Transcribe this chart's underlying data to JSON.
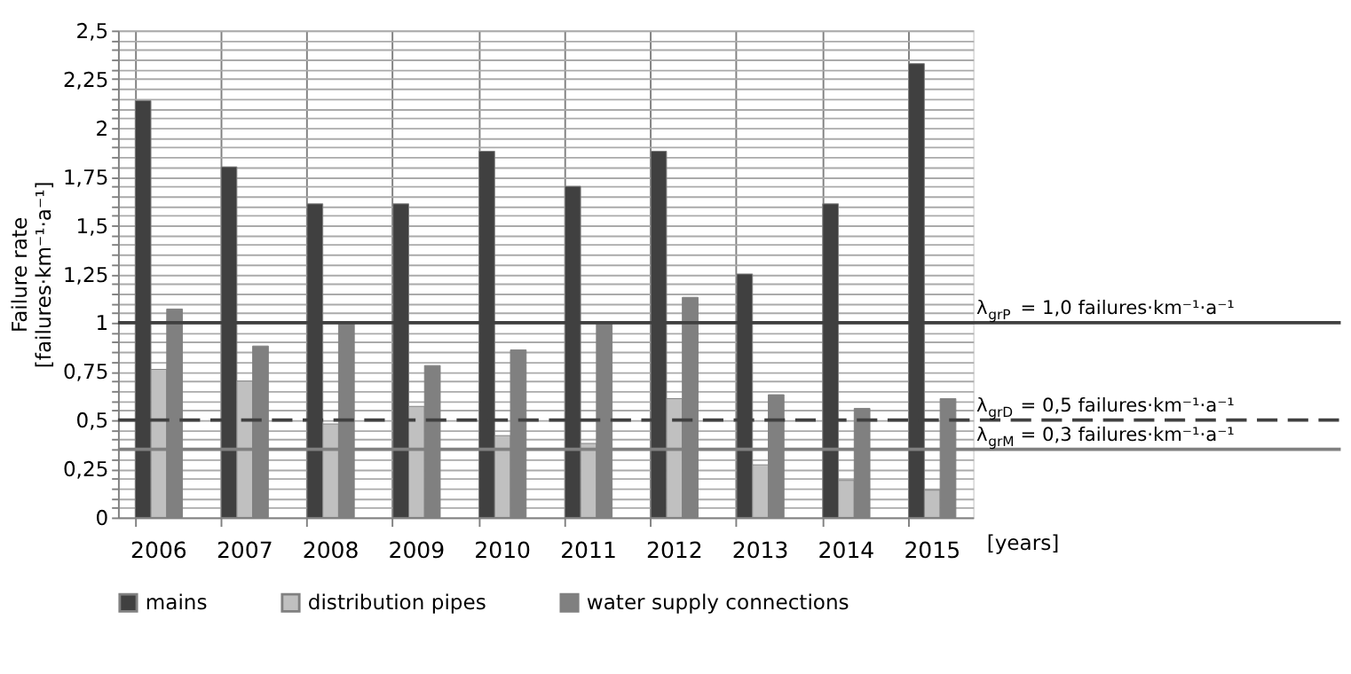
{
  "chart_data": {
    "type": "bar",
    "categories": [
      "2006",
      "2007",
      "2008",
      "2009",
      "2010",
      "2011",
      "2012",
      "2013",
      "2014",
      "2015"
    ],
    "xlabel": "[years]",
    "ylabel": "Failure rate\n[failures·km⁻¹·a⁻¹]",
    "series": [
      {
        "name": "mains",
        "color": "#404040",
        "values": [
          2.14,
          1.8,
          1.61,
          1.61,
          1.88,
          1.7,
          1.88,
          1.25,
          1.61,
          2.33
        ]
      },
      {
        "name": "distribution pipes",
        "color": "#c0c0c0",
        "values": [
          0.76,
          0.7,
          0.48,
          0.57,
          0.42,
          0.38,
          0.61,
          0.27,
          0.19,
          0.14
        ]
      },
      {
        "name": "water supply connections",
        "color": "#808080",
        "values": [
          1.07,
          0.88,
          1.0,
          0.78,
          0.86,
          1.0,
          1.13,
          0.63,
          0.56,
          0.61
        ]
      }
    ],
    "ylim": [
      0,
      2.5
    ],
    "yticks": [
      0,
      {
        "value": 0.05,
        "label": null
      },
      {
        "value": 0.1,
        "label": null
      },
      {
        "value": 0.15,
        "label": null
      },
      {
        "value": 0.2,
        "label": null
      },
      {
        "value": 0.25,
        "label": "0,25"
      },
      {
        "value": 0.3,
        "label": null
      },
      {
        "value": 0.35,
        "label": null
      },
      {
        "value": 0.4,
        "label": null
      },
      {
        "value": 0.45,
        "label": null
      },
      {
        "value": 0.5,
        "label": "0,5"
      },
      {
        "value": 0.55,
        "label": null
      },
      {
        "value": 0.6,
        "label": null
      },
      {
        "value": 0.65,
        "label": null
      },
      {
        "value": 0.7,
        "label": null
      },
      {
        "value": 0.75,
        "label": "0,75"
      },
      {
        "value": 0.8,
        "label": null
      },
      {
        "value": 0.85,
        "label": null
      },
      {
        "value": 0.9,
        "label": null
      },
      {
        "value": 0.95,
        "label": null
      },
      1,
      {
        "value": 1.05,
        "label": null
      },
      {
        "value": 1.1,
        "label": null
      },
      {
        "value": 1.15,
        "label": null
      },
      {
        "value": 1.2,
        "label": null
      },
      {
        "value": 1.25,
        "label": "1,25"
      },
      {
        "value": 1.3,
        "label": null
      },
      {
        "value": 1.35,
        "label": null
      },
      {
        "value": 1.4,
        "label": null
      },
      {
        "value": 1.45,
        "label": null
      },
      {
        "value": 1.5,
        "label": "1,5"
      },
      {
        "value": 1.55,
        "label": null
      },
      {
        "value": 1.6,
        "label": null
      },
      {
        "value": 1.65,
        "label": null
      },
      {
        "value": 1.7,
        "label": null
      },
      {
        "value": 1.75,
        "label": "1,75"
      },
      {
        "value": 1.8,
        "label": null
      },
      {
        "value": 1.85,
        "label": null
      },
      {
        "value": 1.9,
        "label": null
      },
      {
        "value": 1.95,
        "label": null
      },
      2,
      {
        "value": 2.05,
        "label": null
      },
      {
        "value": 2.1,
        "label": null
      },
      {
        "value": 2.15,
        "label": null
      },
      {
        "value": 2.2,
        "label": null
      },
      {
        "value": 2.25,
        "label": "2,25"
      },
      {
        "value": 2.3,
        "label": null
      },
      {
        "value": 2.35,
        "label": null
      },
      {
        "value": 2.4,
        "label": null
      },
      {
        "value": 2.45,
        "label": null
      },
      {
        "value": 2.5,
        "label": "2,5"
      }
    ],
    "ref_lines": [
      {
        "axis": "y",
        "value": 1.0,
        "label": "λ$_{grP}$ = 1,0 failures·km⁻¹·a⁻¹",
        "color": "#404040",
        "line_style": "solid"
      },
      {
        "axis": "y",
        "value": 0.5,
        "label": "λ$_{grD}$ = 0,5 failures·km⁻¹·a⁻¹",
        "color": "#404040",
        "line_style": "dashed"
      },
      {
        "axis": "y",
        "value": 0.35,
        "label": "λ$_{grM}$ = 0,3 failures·km⁻¹·a⁻¹",
        "color": "#808080",
        "line_style": "solid"
      }
    ],
    "grid": true,
    "legend": "bottom"
  }
}
